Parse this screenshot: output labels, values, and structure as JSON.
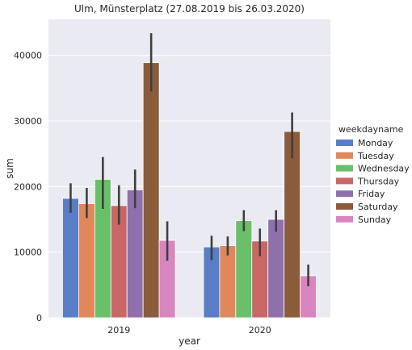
{
  "chart_data": {
    "type": "bar",
    "title": "Ulm, Münsterplatz (27.08.2019 bis 26.03.2020)",
    "xlabel": "year",
    "ylabel": "sum",
    "categories": [
      "2019",
      "2020"
    ],
    "ylim": [
      0,
      45500
    ],
    "yticks": [
      0,
      10000,
      20000,
      30000,
      40000
    ],
    "grid": true,
    "legend_title": "weekdayname",
    "legend_position": "right",
    "series": [
      {
        "name": "Monday",
        "color": "#5a7dc8",
        "values": [
          18200,
          10800
        ],
        "ci": [
          [
            16000,
            20500
          ],
          [
            8800,
            12500
          ]
        ]
      },
      {
        "name": "Tuesday",
        "color": "#e0875b",
        "values": [
          17400,
          11000
        ],
        "ci": [
          [
            15200,
            19800
          ],
          [
            9500,
            12400
          ]
        ]
      },
      {
        "name": "Wednesday",
        "color": "#6abf69",
        "values": [
          21100,
          14800
        ],
        "ci": [
          [
            16600,
            24500
          ],
          [
            13200,
            16400
          ]
        ]
      },
      {
        "name": "Thursday",
        "color": "#c86766",
        "values": [
          17100,
          11700
        ],
        "ci": [
          [
            14200,
            20200
          ],
          [
            9400,
            13600
          ]
        ]
      },
      {
        "name": "Friday",
        "color": "#8f70ad",
        "values": [
          19500,
          15000
        ],
        "ci": [
          [
            16700,
            22600
          ],
          [
            13100,
            16400
          ]
        ]
      },
      {
        "name": "Saturday",
        "color": "#8b5c3c",
        "values": [
          38900,
          28400
        ],
        "ci": [
          [
            34500,
            43400
          ],
          [
            24300,
            31300
          ]
        ]
      },
      {
        "name": "Sunday",
        "color": "#d886c0",
        "values": [
          11800,
          6400
        ],
        "ci": [
          [
            8700,
            14700
          ],
          [
            4800,
            8100
          ]
        ]
      }
    ]
  }
}
